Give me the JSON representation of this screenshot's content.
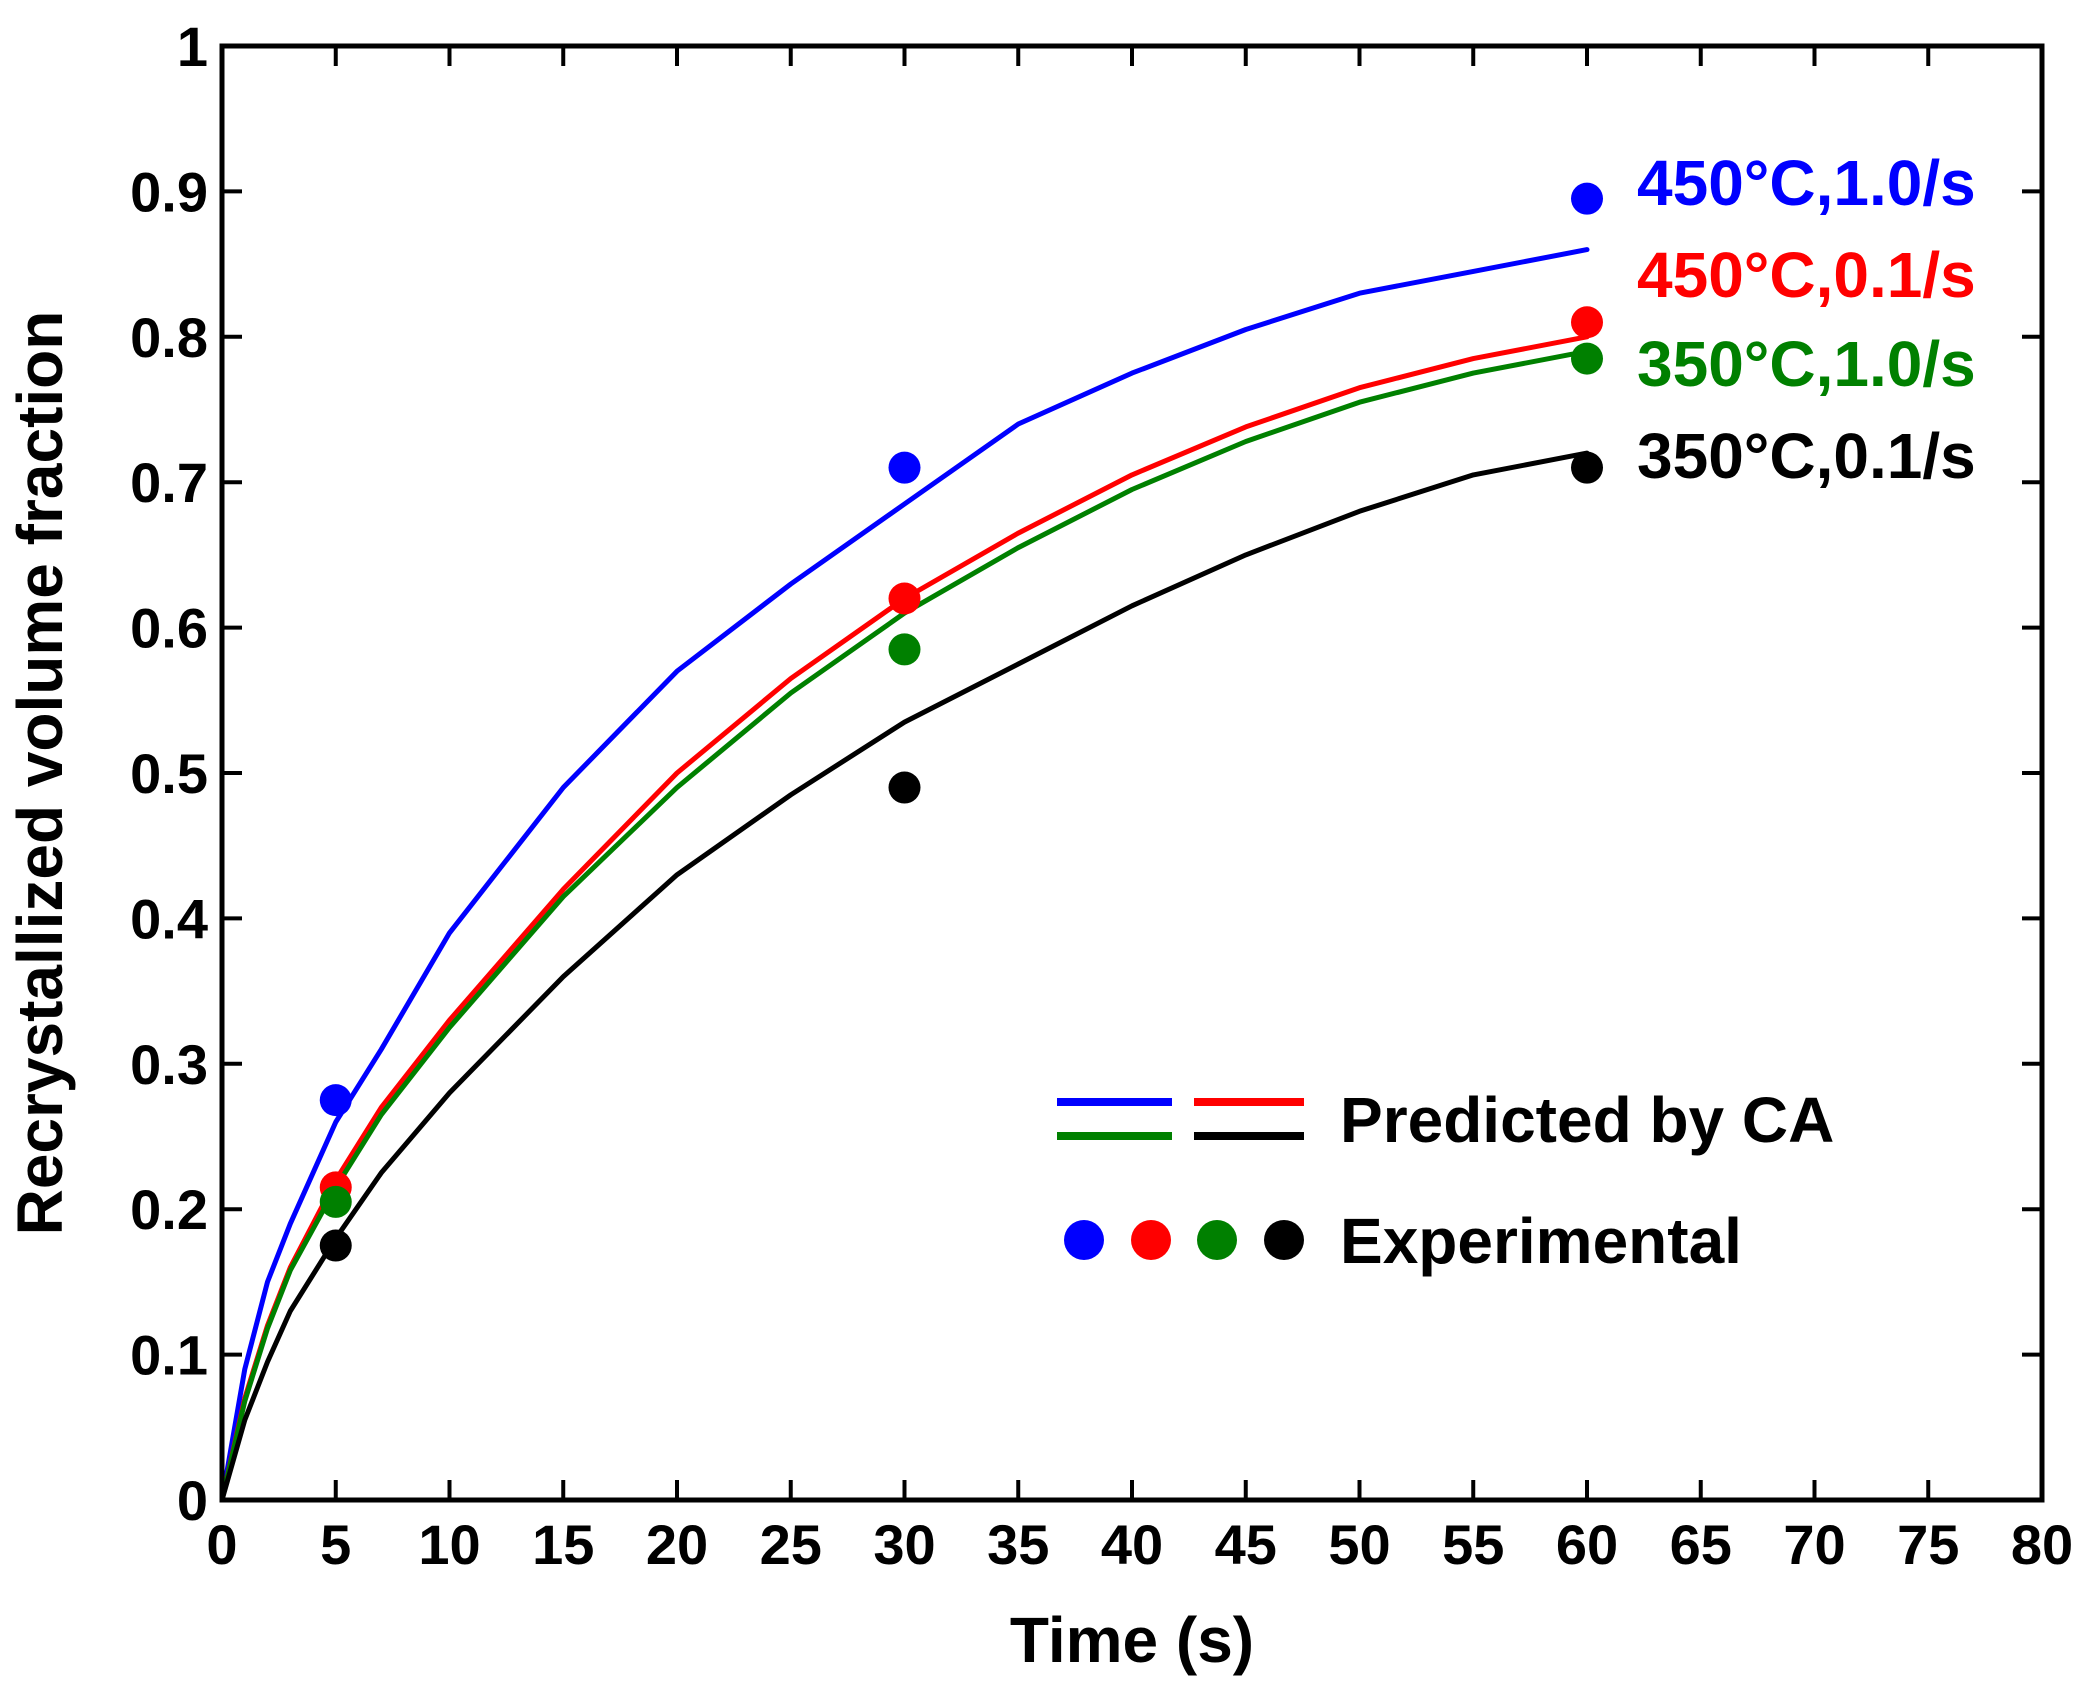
{
  "chart_data": {
    "type": "line",
    "xlabel": "Time (s)",
    "ylabel": "Recrystallized volume fraction",
    "xlim": [
      0,
      80
    ],
    "ylim": [
      0,
      1
    ],
    "xticks": [
      0,
      5,
      10,
      15,
      20,
      25,
      30,
      35,
      40,
      45,
      50,
      55,
      60,
      65,
      70,
      75,
      80
    ],
    "yticks": [
      0,
      0.1,
      0.2,
      0.3,
      0.4,
      0.5,
      0.6,
      0.7,
      0.8,
      0.9,
      1
    ],
    "xtick_labels": [
      "0",
      "5",
      "10",
      "15",
      "20",
      "25",
      "30",
      "35",
      "40",
      "45",
      "50",
      "55",
      "60",
      "65",
      "70",
      "75",
      "80"
    ],
    "ytick_labels": [
      "0",
      "0.1",
      "0.2",
      "0.3",
      "0.4",
      "0.5",
      "0.6",
      "0.7",
      "0.8",
      "0.9",
      "1"
    ],
    "series": [
      {
        "name": "450°C,1.0/s",
        "color": "#0000ff",
        "curve_x": [
          0,
          1,
          2,
          3,
          5,
          7,
          10,
          15,
          20,
          25,
          30,
          35,
          40,
          45,
          50,
          55,
          60
        ],
        "curve_y": [
          0,
          0.09,
          0.15,
          0.19,
          0.26,
          0.31,
          0.39,
          0.49,
          0.57,
          0.63,
          0.685,
          0.74,
          0.775,
          0.805,
          0.83,
          0.845,
          0.86
        ],
        "exp_x": [
          5,
          30,
          60
        ],
        "exp_y": [
          0.275,
          0.71,
          0.895
        ]
      },
      {
        "name": "450°C,0.1/s",
        "color": "#ff0000",
        "curve_x": [
          0,
          1,
          2,
          3,
          5,
          7,
          10,
          15,
          20,
          25,
          30,
          35,
          40,
          45,
          50,
          55,
          60
        ],
        "curve_y": [
          0,
          0.07,
          0.12,
          0.16,
          0.22,
          0.27,
          0.33,
          0.42,
          0.5,
          0.565,
          0.62,
          0.665,
          0.705,
          0.738,
          0.765,
          0.785,
          0.8
        ],
        "exp_x": [
          5,
          30,
          60
        ],
        "exp_y": [
          0.215,
          0.62,
          0.81
        ]
      },
      {
        "name": "350°C,1.0/s",
        "color": "#008000",
        "curve_x": [
          0,
          1,
          2,
          3,
          5,
          7,
          10,
          15,
          20,
          25,
          30,
          35,
          40,
          45,
          50,
          55,
          60
        ],
        "curve_y": [
          0,
          0.068,
          0.118,
          0.158,
          0.215,
          0.265,
          0.325,
          0.415,
          0.49,
          0.555,
          0.61,
          0.655,
          0.695,
          0.728,
          0.755,
          0.775,
          0.79
        ],
        "exp_x": [
          5,
          30,
          60
        ],
        "exp_y": [
          0.205,
          0.585,
          0.785
        ]
      },
      {
        "name": "350°C,0.1/s",
        "color": "#000000",
        "curve_x": [
          0,
          1,
          2,
          3,
          5,
          7,
          10,
          15,
          20,
          25,
          30,
          35,
          40,
          45,
          50,
          55,
          60
        ],
        "curve_y": [
          0,
          0.055,
          0.095,
          0.13,
          0.18,
          0.225,
          0.28,
          0.36,
          0.43,
          0.485,
          0.535,
          0.575,
          0.615,
          0.65,
          0.68,
          0.705,
          0.72
        ],
        "exp_x": [
          5,
          30,
          60
        ],
        "exp_y": [
          0.175,
          0.49,
          0.71
        ]
      }
    ],
    "legend": {
      "line_label": "Predicted by CA",
      "marker_label": "Experimental"
    }
  }
}
